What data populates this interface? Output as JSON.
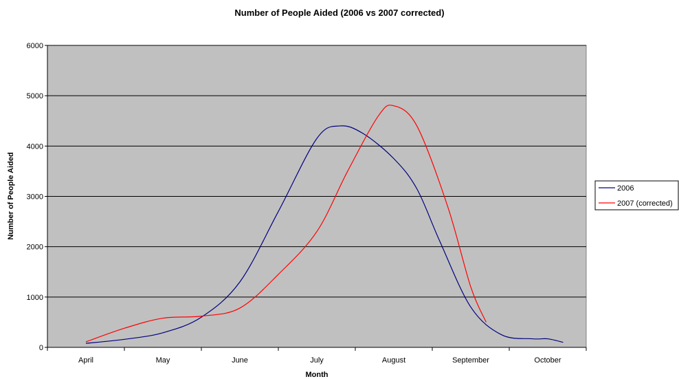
{
  "chart_data": {
    "type": "line",
    "title": "Number of People Aided (2006 vs 2007 corrected)",
    "xlabel": "Month",
    "ylabel": "Number of People Aided",
    "categories": [
      "April",
      "May",
      "June",
      "July",
      "August",
      "September",
      "October"
    ],
    "ylim": [
      0,
      6000
    ],
    "yticks": [
      0,
      1000,
      2000,
      3000,
      4000,
      5000,
      6000
    ],
    "grid": true,
    "legend_position": "right",
    "colors": {
      "plot_background": "#c0c0c0",
      "gridline": "#000000"
    },
    "series": [
      {
        "name": "2006",
        "color": "#000080",
        "points": [
          {
            "x": 0,
            "y": 80
          },
          {
            "x": 0.5,
            "y": 160
          },
          {
            "x": 1,
            "y": 290
          },
          {
            "x": 1.5,
            "y": 600
          },
          {
            "x": 2,
            "y": 1300
          },
          {
            "x": 2.5,
            "y": 2700
          },
          {
            "x": 3,
            "y": 4150
          },
          {
            "x": 3.3,
            "y": 4400
          },
          {
            "x": 3.6,
            "y": 4250
          },
          {
            "x": 4,
            "y": 3750
          },
          {
            "x": 4.3,
            "y": 3150
          },
          {
            "x": 4.6,
            "y": 2100
          },
          {
            "x": 5,
            "y": 800
          },
          {
            "x": 5.4,
            "y": 250
          },
          {
            "x": 5.8,
            "y": 170
          },
          {
            "x": 6,
            "y": 170
          },
          {
            "x": 6.2,
            "y": 100
          }
        ]
      },
      {
        "name": "2007 (corrected)",
        "color": "#ff0000",
        "points": [
          {
            "x": 0,
            "y": 110
          },
          {
            "x": 0.5,
            "y": 380
          },
          {
            "x": 1,
            "y": 580
          },
          {
            "x": 1.5,
            "y": 620
          },
          {
            "x": 2,
            "y": 780
          },
          {
            "x": 2.5,
            "y": 1450
          },
          {
            "x": 3,
            "y": 2300
          },
          {
            "x": 3.4,
            "y": 3500
          },
          {
            "x": 3.8,
            "y": 4600
          },
          {
            "x": 4,
            "y": 4800
          },
          {
            "x": 4.3,
            "y": 4400
          },
          {
            "x": 4.7,
            "y": 2800
          },
          {
            "x": 5,
            "y": 1200
          },
          {
            "x": 5.2,
            "y": 500
          }
        ]
      }
    ]
  }
}
